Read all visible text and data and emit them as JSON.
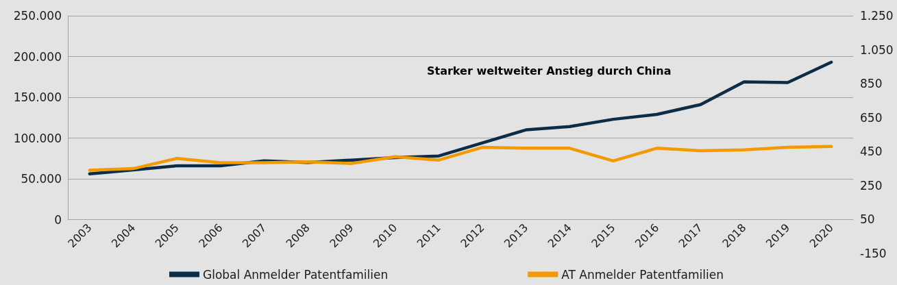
{
  "chart_data": {
    "type": "line",
    "categories": [
      "2003",
      "2004",
      "2005",
      "2006",
      "2007",
      "2008",
      "2009",
      "2010",
      "2011",
      "2012",
      "2013",
      "2014",
      "2015",
      "2016",
      "2017",
      "2018",
      "2019",
      "2020"
    ],
    "series": [
      {
        "name": "Global Anmelder Patentfamilien",
        "color": "#0b2d47",
        "values": [
          56000,
          61000,
          66000,
          66000,
          72000,
          70000,
          73000,
          76000,
          78000,
          94000,
          110000,
          114000,
          123000,
          129000,
          141000,
          169000,
          168000,
          193000
        ]
      },
      {
        "name": "AT Anmelder Patentfamilien",
        "color": "#f39a00",
        "axis": "y2",
        "values": [
          340,
          350,
          410,
          385,
          385,
          390,
          380,
          420,
          400,
          475,
          470,
          470,
          395,
          470,
          455,
          460,
          475,
          480
        ]
      }
    ],
    "ylim": [
      0,
      250000
    ],
    "yticks": [
      0,
      {
        "value": 50000,
        "label": "50.000"
      },
      {
        "value": 100000,
        "label": "100.000"
      },
      {
        "value": 150000,
        "label": "150.000"
      },
      {
        "value": 200000,
        "label": "200.000"
      },
      {
        "value": 250000,
        "label": "250.000"
      }
    ],
    "y2lim": [
      -150,
      1250
    ],
    "y2ticks": [
      -150,
      50,
      250,
      450,
      650,
      850,
      {
        "value": 1050,
        "label": "1.050"
      },
      {
        "value": 1250,
        "label": "1.250"
      }
    ],
    "annotations": [
      "Starker weltweiter Anstieg durch China"
    ],
    "grid": "y",
    "legend": "bottom"
  }
}
